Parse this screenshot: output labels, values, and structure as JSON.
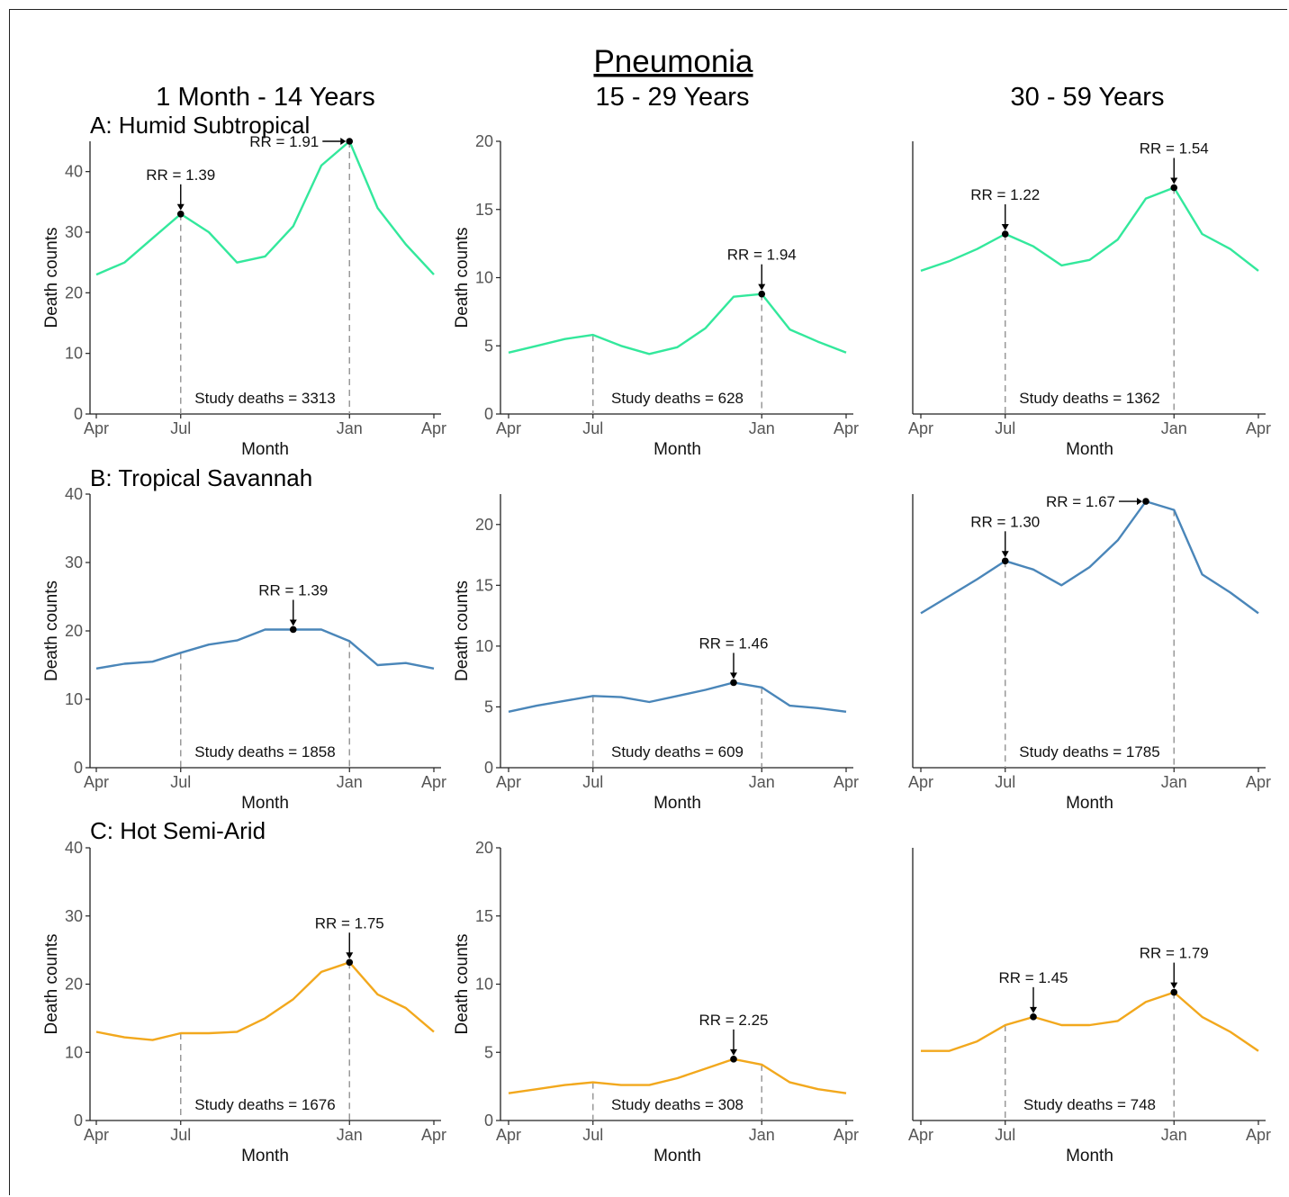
{
  "figure": {
    "title": "Pneumonia",
    "column_titles": [
      "1 Month - 14 Years",
      "15 - 29 Years",
      "30 - 59 Years"
    ],
    "row_titles": [
      "A: Humid Subtropical",
      "B: Tropical Savannah",
      "C: Hot Semi-Arid"
    ],
    "colors": {
      "A": "#33e89c",
      "B": "#4a86b9",
      "C": "#f2a81d",
      "dashed": "#999999",
      "axis": "#222222"
    }
  },
  "chart_data": [
    {
      "type": "line",
      "row": "A",
      "col": 0,
      "xlabel": "Month",
      "ylabel": "Death counts",
      "ylim": [
        0,
        45
      ],
      "yticks": [
        0,
        10,
        20,
        30,
        40
      ],
      "xlim": [
        0,
        12
      ],
      "xticks": [
        {
          "x": 0,
          "label": "Apr"
        },
        {
          "x": 3,
          "label": "Jul"
        },
        {
          "x": 9,
          "label": "Jan"
        },
        {
          "x": 12,
          "label": "Apr"
        }
      ],
      "x": [
        0,
        1,
        2,
        3,
        4,
        5,
        6,
        7,
        8,
        9,
        10,
        11,
        12
      ],
      "values": [
        23,
        25,
        29,
        33,
        30,
        25,
        26,
        31,
        41,
        45,
        34,
        28,
        23
      ],
      "vlines": [
        3,
        9
      ],
      "points": [
        {
          "x": 3,
          "y": 33,
          "label": "RR = 1.39",
          "dir": "top"
        },
        {
          "x": 9,
          "y": 45,
          "label": "RR = 1.91",
          "dir": "left"
        }
      ],
      "deaths": "Study deaths = 3313"
    },
    {
      "type": "line",
      "row": "A",
      "col": 1,
      "xlabel": "Month",
      "ylabel": "Death counts",
      "ylim": [
        0,
        20
      ],
      "yticks": [
        0,
        5,
        10,
        15,
        20
      ],
      "xlim": [
        0,
        12
      ],
      "xticks": [
        {
          "x": 0,
          "label": "Apr"
        },
        {
          "x": 3,
          "label": "Jul"
        },
        {
          "x": 9,
          "label": "Jan"
        },
        {
          "x": 12,
          "label": "Apr"
        }
      ],
      "x": [
        0,
        1,
        2,
        3,
        4,
        5,
        6,
        7,
        8,
        9,
        10,
        11,
        12
      ],
      "values": [
        4.5,
        5,
        5.5,
        5.8,
        5,
        4.4,
        4.9,
        6.3,
        8.6,
        8.8,
        6.2,
        5.3,
        4.5
      ],
      "vlines": [
        3,
        9
      ],
      "points": [
        {
          "x": 9,
          "y": 8.8,
          "label": "RR = 1.94",
          "dir": "top"
        }
      ],
      "deaths": "Study deaths = 628"
    },
    {
      "type": "line",
      "row": "A",
      "col": 2,
      "xlabel": "Month",
      "ylabel": "",
      "ylim": [
        0,
        20
      ],
      "yticks": [],
      "xlim": [
        0,
        12
      ],
      "xticks": [
        {
          "x": 0,
          "label": "Apr"
        },
        {
          "x": 3,
          "label": "Jul"
        },
        {
          "x": 9,
          "label": "Jan"
        },
        {
          "x": 12,
          "label": "Apr"
        }
      ],
      "x": [
        0,
        1,
        2,
        3,
        4,
        5,
        6,
        7,
        8,
        9,
        10,
        11,
        12
      ],
      "values": [
        10.5,
        11.2,
        12.1,
        13.2,
        12.3,
        10.9,
        11.3,
        12.8,
        15.8,
        16.6,
        13.2,
        12.1,
        10.5
      ],
      "vlines": [
        3,
        9
      ],
      "points": [
        {
          "x": 3,
          "y": 13.2,
          "label": "RR = 1.22",
          "dir": "top"
        },
        {
          "x": 9,
          "y": 16.6,
          "label": "RR = 1.54",
          "dir": "top"
        }
      ],
      "deaths": "Study deaths = 1362"
    },
    {
      "type": "line",
      "row": "B",
      "col": 0,
      "xlabel": "Month",
      "ylabel": "Death counts",
      "ylim": [
        0,
        40
      ],
      "yticks": [
        0,
        10,
        20,
        30,
        40
      ],
      "xlim": [
        0,
        12
      ],
      "xticks": [
        {
          "x": 0,
          "label": "Apr"
        },
        {
          "x": 3,
          "label": "Jul"
        },
        {
          "x": 9,
          "label": "Jan"
        },
        {
          "x": 12,
          "label": "Apr"
        }
      ],
      "x": [
        0,
        1,
        2,
        3,
        4,
        5,
        6,
        7,
        8,
        9,
        10,
        11,
        12
      ],
      "values": [
        14.5,
        15.2,
        15.5,
        16.8,
        18,
        18.6,
        20.2,
        20.2,
        20.2,
        18.5,
        15,
        15.3,
        14.5
      ],
      "vlines": [
        3,
        9
      ],
      "points": [
        {
          "x": 7,
          "y": 20.2,
          "label": "RR = 1.39",
          "dir": "top"
        }
      ],
      "deaths": "Study deaths = 1858"
    },
    {
      "type": "line",
      "row": "B",
      "col": 1,
      "xlabel": "Month",
      "ylabel": "Death counts",
      "ylim": [
        0,
        22.5
      ],
      "yticks": [
        0,
        5,
        10,
        15,
        20
      ],
      "xlim": [
        0,
        12
      ],
      "xticks": [
        {
          "x": 0,
          "label": "Apr"
        },
        {
          "x": 3,
          "label": "Jul"
        },
        {
          "x": 9,
          "label": "Jan"
        },
        {
          "x": 12,
          "label": "Apr"
        }
      ],
      "x": [
        0,
        1,
        2,
        3,
        4,
        5,
        6,
        7,
        8,
        9,
        10,
        11,
        12
      ],
      "values": [
        4.6,
        5.1,
        5.5,
        5.9,
        5.8,
        5.4,
        5.9,
        6.4,
        7,
        6.6,
        5.1,
        4.9,
        4.6
      ],
      "vlines": [
        3,
        9
      ],
      "points": [
        {
          "x": 8,
          "y": 7,
          "label": "RR = 1.46",
          "dir": "top"
        }
      ],
      "deaths": "Study deaths = 609"
    },
    {
      "type": "line",
      "row": "B",
      "col": 2,
      "xlabel": "Month",
      "ylabel": "",
      "ylim": [
        0,
        22.5
      ],
      "yticks": [],
      "xlim": [
        0,
        12
      ],
      "xticks": [
        {
          "x": 0,
          "label": "Apr"
        },
        {
          "x": 3,
          "label": "Jul"
        },
        {
          "x": 9,
          "label": "Jan"
        },
        {
          "x": 12,
          "label": "Apr"
        }
      ],
      "x": [
        0,
        1,
        2,
        3,
        4,
        5,
        6,
        7,
        8,
        9,
        10,
        11,
        12
      ],
      "values": [
        12.7,
        14.1,
        15.5,
        17,
        16.3,
        15,
        16.5,
        18.7,
        21.9,
        21.2,
        15.9,
        14.4,
        12.7
      ],
      "vlines": [
        3,
        9
      ],
      "points": [
        {
          "x": 3,
          "y": 17,
          "label": "RR = 1.30",
          "dir": "top"
        },
        {
          "x": 8,
          "y": 21.9,
          "label": "RR = 1.67",
          "dir": "left"
        }
      ],
      "deaths": "Study deaths = 1785"
    },
    {
      "type": "line",
      "row": "C",
      "col": 0,
      "xlabel": "Month",
      "ylabel": "Death counts",
      "ylim": [
        0,
        40
      ],
      "yticks": [
        0,
        10,
        20,
        30,
        40
      ],
      "xlim": [
        0,
        12
      ],
      "xticks": [
        {
          "x": 0,
          "label": "Apr"
        },
        {
          "x": 3,
          "label": "Jul"
        },
        {
          "x": 9,
          "label": "Jan"
        },
        {
          "x": 12,
          "label": "Apr"
        }
      ],
      "x": [
        0,
        1,
        2,
        3,
        4,
        5,
        6,
        7,
        8,
        9,
        10,
        11,
        12
      ],
      "values": [
        13,
        12.2,
        11.8,
        12.8,
        12.8,
        13,
        15,
        17.8,
        21.8,
        23.2,
        18.5,
        16.5,
        13
      ],
      "vlines": [
        3,
        9
      ],
      "points": [
        {
          "x": 9,
          "y": 23.2,
          "label": "RR = 1.75",
          "dir": "top"
        }
      ],
      "deaths": "Study deaths = 1676"
    },
    {
      "type": "line",
      "row": "C",
      "col": 1,
      "xlabel": "Month",
      "ylabel": "Death counts",
      "ylim": [
        0,
        20
      ],
      "yticks": [
        0,
        5,
        10,
        15,
        20
      ],
      "xlim": [
        0,
        12
      ],
      "xticks": [
        {
          "x": 0,
          "label": "Apr"
        },
        {
          "x": 3,
          "label": "Jul"
        },
        {
          "x": 9,
          "label": "Jan"
        },
        {
          "x": 12,
          "label": "Apr"
        }
      ],
      "x": [
        0,
        1,
        2,
        3,
        4,
        5,
        6,
        7,
        8,
        9,
        10,
        11,
        12
      ],
      "values": [
        2,
        2.3,
        2.6,
        2.8,
        2.6,
        2.6,
        3.1,
        3.8,
        4.5,
        4.1,
        2.8,
        2.3,
        2
      ],
      "vlines": [
        3,
        9
      ],
      "points": [
        {
          "x": 8,
          "y": 4.5,
          "label": "RR = 2.25",
          "dir": "top"
        }
      ],
      "deaths": "Study deaths = 308"
    },
    {
      "type": "line",
      "row": "C",
      "col": 2,
      "xlabel": "Month",
      "ylabel": "",
      "ylim": [
        0,
        20
      ],
      "yticks": [],
      "xlim": [
        0,
        12
      ],
      "xticks": [
        {
          "x": 0,
          "label": "Apr"
        },
        {
          "x": 3,
          "label": "Jul"
        },
        {
          "x": 9,
          "label": "Jan"
        },
        {
          "x": 12,
          "label": "Apr"
        }
      ],
      "x": [
        0,
        1,
        2,
        3,
        4,
        5,
        6,
        7,
        8,
        9,
        10,
        11,
        12
      ],
      "values": [
        5.1,
        5.1,
        5.8,
        7,
        7.6,
        7,
        7,
        7.3,
        8.7,
        9.4,
        7.6,
        6.5,
        5.1
      ],
      "vlines": [
        3,
        9
      ],
      "points": [
        {
          "x": 4,
          "y": 7.6,
          "label": "RR = 1.45",
          "dir": "top"
        },
        {
          "x": 9,
          "y": 9.4,
          "label": "RR = 1.79",
          "dir": "top"
        }
      ],
      "deaths": "Study deaths = 748"
    }
  ]
}
